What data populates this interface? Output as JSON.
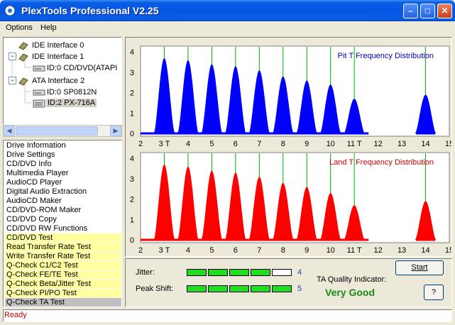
{
  "window": {
    "title": "PlexTools Professional V2.25",
    "minimize": "–",
    "maximize": "□",
    "close": "✕"
  },
  "menu": [
    "Options",
    "Help"
  ],
  "tree": {
    "items": [
      {
        "label": "IDE Interface 0",
        "icon": "interface-icon"
      },
      {
        "label": "IDE Interface 1",
        "icon": "interface-icon"
      },
      {
        "label": "ID:0  CD/DVD(ATAPI",
        "icon": "drive-icon"
      },
      {
        "label": "ATA Interface 2",
        "icon": "interface-icon"
      },
      {
        "label": "ID:0  SP0812N",
        "icon": "drive-icon"
      },
      {
        "label": "ID:2  PX-716A",
        "icon": "drive-icon"
      }
    ],
    "expanders": [
      "−",
      "−"
    ]
  },
  "scroll": {
    "left": "◀",
    "right": "▶"
  },
  "functions": [
    {
      "label": "Drive Information",
      "style": "normal"
    },
    {
      "label": "Drive Settings",
      "style": "normal"
    },
    {
      "label": "CD/DVD Info",
      "style": "normal"
    },
    {
      "label": "Multimedia Player",
      "style": "normal"
    },
    {
      "label": "AudioCD Player",
      "style": "normal"
    },
    {
      "label": "Digital Audio Extraction",
      "style": "normal"
    },
    {
      "label": "AudioCD Maker",
      "style": "normal"
    },
    {
      "label": "CD/DVD-ROM Maker",
      "style": "normal"
    },
    {
      "label": "CD/DVD Copy",
      "style": "normal"
    },
    {
      "label": "CD/DVD RW Functions",
      "style": "normal"
    },
    {
      "label": "CD/DVD Test",
      "style": "yellow"
    },
    {
      "label": "Read Transfer Rate Test",
      "style": "yellow"
    },
    {
      "label": "Write Transfer Rate Test",
      "style": "yellow"
    },
    {
      "label": "Q-Check C1/C2 Test",
      "style": "yellow"
    },
    {
      "label": "Q-Check FE/TE Test",
      "style": "yellow"
    },
    {
      "label": "Q-Check Beta/Jitter Test",
      "style": "yellow"
    },
    {
      "label": "Q-Check PI/PO Test",
      "style": "yellow"
    },
    {
      "label": "Q-Check TA Test",
      "style": "sel"
    }
  ],
  "chart_data": [
    {
      "type": "area",
      "title": "Pit T Frequency Distribution",
      "color": "#0000ff",
      "xlim": [
        2,
        15
      ],
      "ylim": [
        0,
        4
      ],
      "x_ticks": [
        "2",
        "3 T",
        "4",
        "5",
        "6",
        "7",
        "8",
        "9",
        "10",
        "11 T",
        "12",
        "13",
        "14",
        "15"
      ],
      "y_ticks": [
        "0",
        "1",
        "2",
        "3",
        "4"
      ],
      "series": [
        {
          "x": 3,
          "values_peak": 3.7
        },
        {
          "x": 4,
          "values_peak": 3.6
        },
        {
          "x": 5,
          "values_peak": 3.4
        },
        {
          "x": 6,
          "values_peak": 3.3
        },
        {
          "x": 7,
          "values_peak": 3.1
        },
        {
          "x": 8,
          "values_peak": 2.8
        },
        {
          "x": 9,
          "values_peak": 2.6
        },
        {
          "x": 10,
          "values_peak": 2.4
        },
        {
          "x": 11,
          "values_peak": 1.7
        },
        {
          "x": 14,
          "values_peak": 1.9
        }
      ],
      "marker_lines": [
        3,
        4,
        5,
        6,
        7,
        8,
        9,
        10,
        11,
        14
      ]
    },
    {
      "type": "area",
      "title": "Land T Frequency Distribution",
      "color": "#ff0000",
      "xlim": [
        2,
        15
      ],
      "ylim": [
        0,
        4
      ],
      "x_ticks": [
        "2",
        "3 T",
        "4",
        "5",
        "6",
        "7",
        "8",
        "9",
        "10",
        "11 T",
        "12",
        "13",
        "14",
        "15"
      ],
      "y_ticks": [
        "0",
        "1",
        "2",
        "3",
        "4"
      ],
      "series": [
        {
          "x": 3,
          "values_peak": 3.7
        },
        {
          "x": 4,
          "values_peak": 3.6
        },
        {
          "x": 5,
          "values_peak": 3.4
        },
        {
          "x": 6,
          "values_peak": 3.3
        },
        {
          "x": 7,
          "values_peak": 3.1
        },
        {
          "x": 8,
          "values_peak": 2.8
        },
        {
          "x": 9,
          "values_peak": 2.6
        },
        {
          "x": 10,
          "values_peak": 2.3
        },
        {
          "x": 11,
          "values_peak": 1.7
        },
        {
          "x": 14,
          "values_peak": 1.9
        }
      ],
      "marker_lines": [
        3,
        4,
        5,
        6,
        7,
        8,
        9,
        10,
        11,
        14
      ]
    }
  ],
  "meters": {
    "jitter": {
      "label": "Jitter:",
      "value": "4",
      "segments_on": 4,
      "segments_total": 5
    },
    "peak_shift": {
      "label": "Peak Shift:",
      "value": "5",
      "segments_on": 5,
      "segments_total": 5
    }
  },
  "ta": {
    "label": "TA Quality Indicator:",
    "value": "Very Good"
  },
  "buttons": {
    "start": "Start",
    "help": "?"
  },
  "status": "Ready",
  "colors": {
    "accent": "#0554e3",
    "pit": "#0000ff",
    "land": "#ff0000",
    "marker": "#00b000",
    "good": "#1a8a1a"
  }
}
